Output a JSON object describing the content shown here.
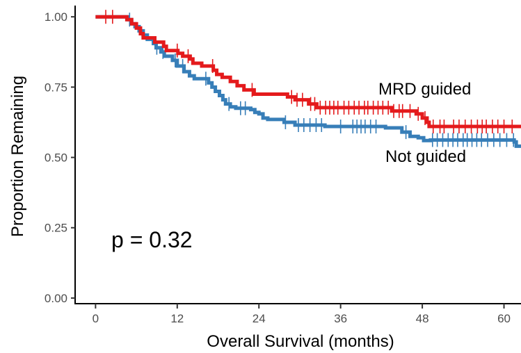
{
  "chart_data": {
    "type": "line",
    "title": "",
    "xlabel": "Overall Survival (months)",
    "ylabel": "Proportion Remaining",
    "xlim": [
      -3,
      62.5
    ],
    "ylim": [
      -0.02,
      1.04
    ],
    "xticks": [
      0,
      12,
      24,
      36,
      48,
      60
    ],
    "xtick_labels": [
      "0",
      "12",
      "24",
      "36",
      "48",
      "60"
    ],
    "yticks": [
      0,
      0.25,
      0.5,
      0.75,
      1.0
    ],
    "ytick_labels": [
      "0.00",
      "0.25",
      "0.50",
      "0.75",
      "1.00"
    ],
    "grid": false,
    "legend": "none",
    "annotation": "p = 0.32",
    "series": [
      {
        "name": "MRD guided",
        "color": "#e41a1c",
        "steps": [
          [
            0,
            1.0
          ],
          [
            4.6,
            0.99
          ],
          [
            5.3,
            0.975
          ],
          [
            6.0,
            0.96
          ],
          [
            6.6,
            0.94
          ],
          [
            7.0,
            0.925
          ],
          [
            8.7,
            0.91
          ],
          [
            10.0,
            0.895
          ],
          [
            10.4,
            0.88
          ],
          [
            12.1,
            0.87
          ],
          [
            12.8,
            0.86
          ],
          [
            13.9,
            0.85
          ],
          [
            14.3,
            0.835
          ],
          [
            15.6,
            0.825
          ],
          [
            17.3,
            0.81
          ],
          [
            17.8,
            0.795
          ],
          [
            18.6,
            0.785
          ],
          [
            19.8,
            0.77
          ],
          [
            20.8,
            0.755
          ],
          [
            21.8,
            0.74
          ],
          [
            23.3,
            0.725
          ],
          [
            28.2,
            0.715
          ],
          [
            29.3,
            0.705
          ],
          [
            31.3,
            0.69
          ],
          [
            32.5,
            0.677
          ],
          [
            43.5,
            0.665
          ],
          [
            47.1,
            0.655
          ],
          [
            48.0,
            0.64
          ],
          [
            48.7,
            0.625
          ],
          [
            49.0,
            0.61
          ],
          [
            62.5,
            0.61
          ]
        ],
        "censor_x": [
          1.5,
          2.5,
          12.0,
          13.6,
          17.2,
          23.0,
          28.8,
          29.6,
          30.4,
          31.6,
          32.2,
          33.0,
          33.8,
          34.4,
          35.0,
          35.6,
          36.5,
          37.2,
          38.0,
          38.7,
          39.5,
          40.0,
          40.8,
          41.5,
          42.2,
          43.0,
          43.8,
          44.6,
          45.1,
          46.2,
          47.4,
          48.4,
          49.6,
          50.6,
          51.2,
          52.6,
          53.4,
          54.3,
          55.2,
          56.1,
          56.8,
          57.4,
          58.3,
          59.1,
          60.0,
          61.2
        ]
      },
      {
        "name": "Not guided",
        "color": "#377eb8",
        "steps": [
          [
            0,
            1.0
          ],
          [
            4.8,
            0.99
          ],
          [
            5.3,
            0.975
          ],
          [
            5.8,
            0.965
          ],
          [
            6.4,
            0.95
          ],
          [
            7.0,
            0.935
          ],
          [
            7.6,
            0.92
          ],
          [
            8.5,
            0.905
          ],
          [
            8.9,
            0.89
          ],
          [
            9.6,
            0.875
          ],
          [
            10.1,
            0.86
          ],
          [
            11.3,
            0.845
          ],
          [
            12.0,
            0.825
          ],
          [
            13.0,
            0.805
          ],
          [
            13.8,
            0.79
          ],
          [
            14.5,
            0.78
          ],
          [
            16.6,
            0.765
          ],
          [
            17.1,
            0.75
          ],
          [
            17.6,
            0.735
          ],
          [
            18.2,
            0.72
          ],
          [
            18.7,
            0.705
          ],
          [
            19.1,
            0.69
          ],
          [
            19.8,
            0.68
          ],
          [
            20.6,
            0.675
          ],
          [
            22.8,
            0.67
          ],
          [
            23.4,
            0.66
          ],
          [
            24.0,
            0.655
          ],
          [
            24.6,
            0.64
          ],
          [
            25.3,
            0.635
          ],
          [
            27.7,
            0.625
          ],
          [
            29.3,
            0.615
          ],
          [
            33.7,
            0.61
          ],
          [
            42.6,
            0.605
          ],
          [
            45.0,
            0.59
          ],
          [
            46.2,
            0.575
          ],
          [
            47.4,
            0.57
          ],
          [
            48.2,
            0.56
          ],
          [
            49.2,
            0.562
          ],
          [
            61.5,
            0.555
          ],
          [
            61.8,
            0.54
          ],
          [
            62.5,
            0.54
          ]
        ],
        "censor_x": [
          5.0,
          9.0,
          9.9,
          11.7,
          12.8,
          16.2,
          19.6,
          21.3,
          22.0,
          27.9,
          29.8,
          30.6,
          31.5,
          32.4,
          33.2,
          36.0,
          37.8,
          38.4,
          39.0,
          39.6,
          40.4,
          41.2,
          45.6,
          49.5,
          50.2,
          51.0,
          51.8,
          52.5,
          53.2,
          54.0,
          54.6,
          55.3,
          56.0,
          56.7,
          57.6,
          58.5,
          59.4,
          60.4,
          61.4
        ]
      }
    ]
  }
}
